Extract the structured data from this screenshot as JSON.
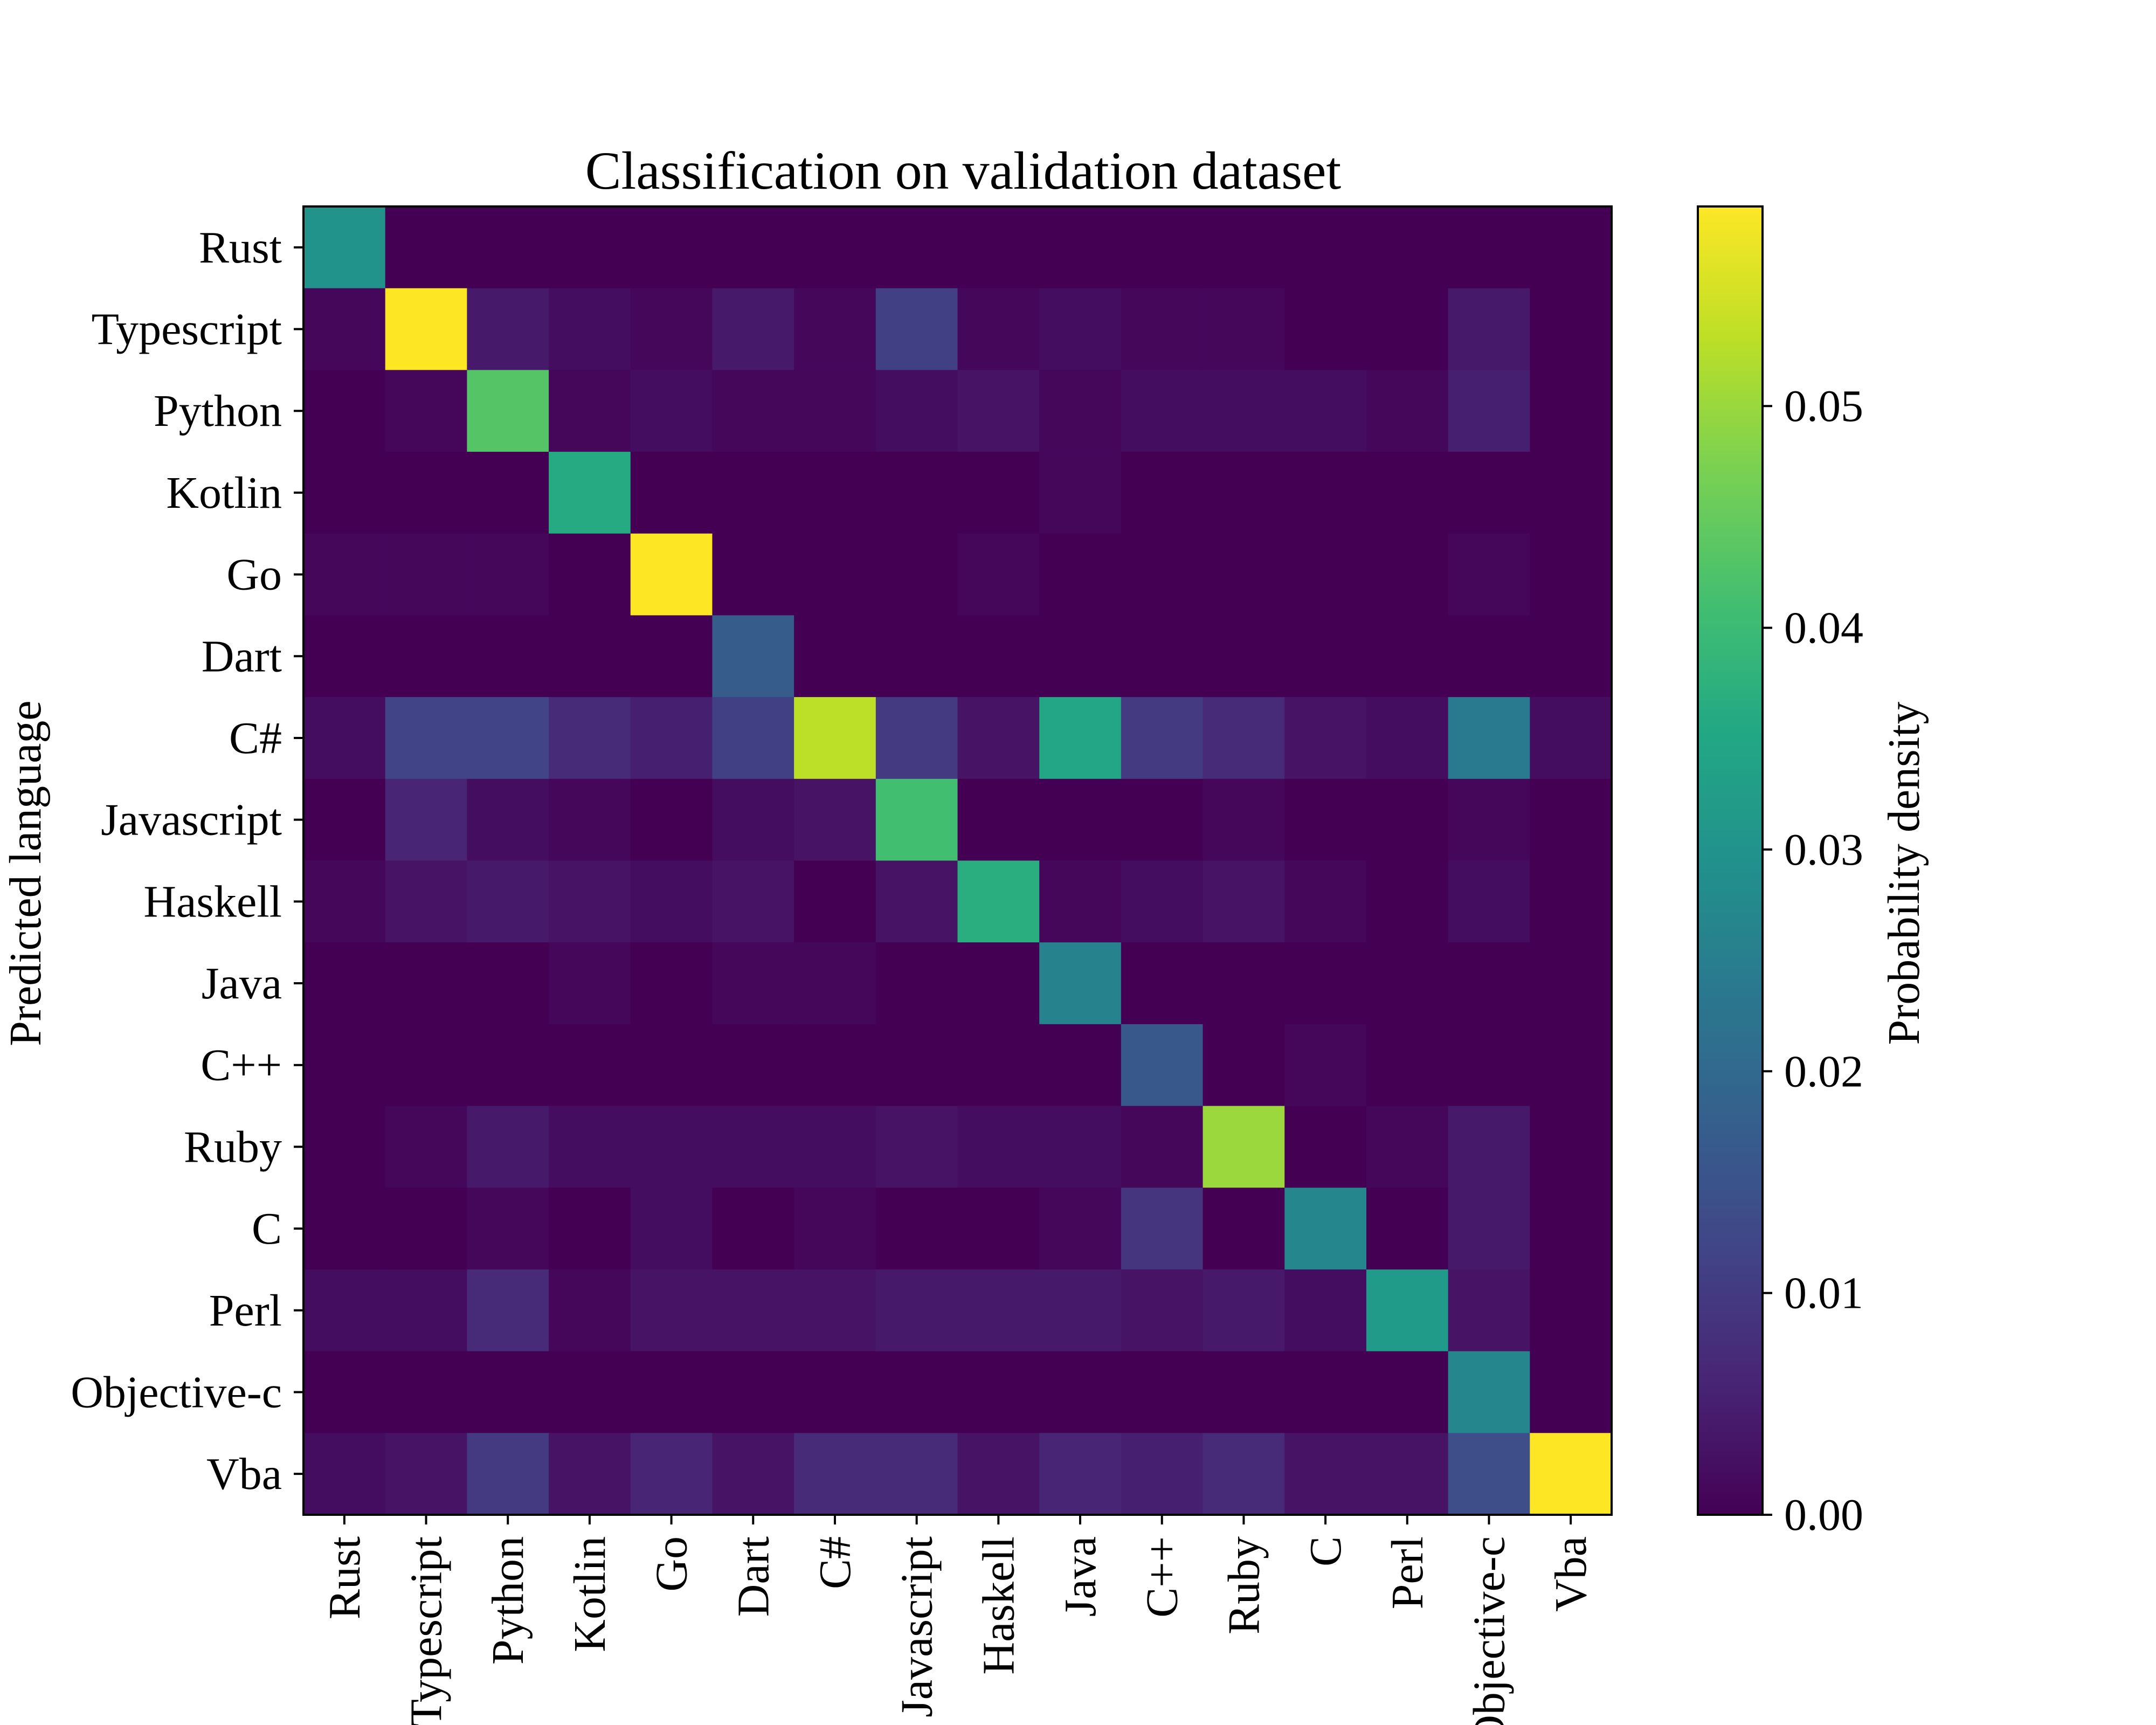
{
  "chart_data": {
    "type": "heatmap",
    "title": "Classification on validation dataset",
    "xlabel": "",
    "ylabel": "Predicted language",
    "colorbar_label": "Probability density",
    "colormap": "viridis",
    "color_range": [
      0.0,
      0.059
    ],
    "colorbar_ticks": [
      "0.00",
      "0.01",
      "0.02",
      "0.03",
      "0.04",
      "0.05"
    ],
    "colorbar_tick_values": [
      0.0,
      0.01,
      0.02,
      0.03,
      0.04,
      0.05
    ],
    "x_categories": [
      "Rust",
      "Typescript",
      "Python",
      "Kotlin",
      "Go",
      "Dart",
      "C#",
      "Javascript",
      "Haskell",
      "Java",
      "C++",
      "Ruby",
      "C",
      "Perl",
      "Objective-c",
      "Vba"
    ],
    "y_categories": [
      "Rust",
      "Typescript",
      "Python",
      "Kotlin",
      "Go",
      "Dart",
      "C#",
      "Javascript",
      "Haskell",
      "Java",
      "C++",
      "Ruby",
      "C",
      "Perl",
      "Objective-c",
      "Vba"
    ],
    "values": [
      [
        0.03,
        0.0,
        0.0,
        0.0,
        0.0,
        0.0,
        0.0,
        0.0,
        0.0,
        0.0,
        0.0,
        0.0,
        0.0,
        0.0,
        0.0,
        0.0
      ],
      [
        0.001,
        0.059,
        0.004,
        0.002,
        0.001,
        0.004,
        0.001,
        0.011,
        0.001,
        0.002,
        0.001,
        0.001,
        0.0,
        0.0,
        0.004,
        0.0
      ],
      [
        0.0,
        0.001,
        0.043,
        0.001,
        0.002,
        0.001,
        0.001,
        0.002,
        0.003,
        0.001,
        0.002,
        0.002,
        0.002,
        0.001,
        0.005,
        0.0
      ],
      [
        0.0,
        0.0,
        0.0,
        0.036,
        0.0,
        0.0,
        0.0,
        0.0,
        0.0,
        0.001,
        0.0,
        0.0,
        0.0,
        0.0,
        0.0,
        0.0
      ],
      [
        0.001,
        0.001,
        0.001,
        0.0,
        0.059,
        0.0,
        0.0,
        0.0,
        0.001,
        0.0,
        0.0,
        0.0,
        0.0,
        0.0,
        0.001,
        0.0
      ],
      [
        0.0,
        0.0,
        0.0,
        0.0,
        0.0,
        0.017,
        0.0,
        0.0,
        0.0,
        0.0,
        0.0,
        0.0,
        0.0,
        0.0,
        0.0,
        0.0
      ],
      [
        0.002,
        0.012,
        0.012,
        0.007,
        0.005,
        0.011,
        0.053,
        0.01,
        0.003,
        0.035,
        0.01,
        0.007,
        0.003,
        0.002,
        0.024,
        0.002
      ],
      [
        0.0,
        0.006,
        0.002,
        0.001,
        0.0,
        0.002,
        0.003,
        0.041,
        0.0,
        0.0,
        0.0,
        0.001,
        0.0,
        0.0,
        0.001,
        0.0
      ],
      [
        0.001,
        0.003,
        0.004,
        0.003,
        0.002,
        0.003,
        0.0,
        0.003,
        0.037,
        0.001,
        0.002,
        0.003,
        0.001,
        0.0,
        0.002,
        0.0
      ],
      [
        0.0,
        0.0,
        0.0,
        0.001,
        0.0,
        0.001,
        0.001,
        0.0,
        0.0,
        0.026,
        0.0,
        0.0,
        0.0,
        0.0,
        0.0,
        0.0
      ],
      [
        0.0,
        0.0,
        0.0,
        0.0,
        0.0,
        0.0,
        0.0,
        0.0,
        0.0,
        0.0,
        0.016,
        0.0,
        0.001,
        0.0,
        0.0,
        0.0
      ],
      [
        0.0,
        0.001,
        0.004,
        0.002,
        0.002,
        0.002,
        0.002,
        0.003,
        0.002,
        0.002,
        0.001,
        0.05,
        0.0,
        0.001,
        0.004,
        0.0
      ],
      [
        0.0,
        0.0,
        0.001,
        0.0,
        0.002,
        0.0,
        0.001,
        0.0,
        0.0,
        0.001,
        0.009,
        0.0,
        0.027,
        0.0,
        0.004,
        0.0
      ],
      [
        0.002,
        0.002,
        0.007,
        0.001,
        0.003,
        0.003,
        0.003,
        0.004,
        0.004,
        0.004,
        0.003,
        0.004,
        0.002,
        0.032,
        0.003,
        0.0
      ],
      [
        0.0,
        0.0,
        0.0,
        0.0,
        0.0,
        0.0,
        0.0,
        0.0,
        0.0,
        0.0,
        0.0,
        0.0,
        0.0,
        0.0,
        0.027,
        0.0
      ],
      [
        0.002,
        0.003,
        0.01,
        0.003,
        0.006,
        0.003,
        0.007,
        0.007,
        0.003,
        0.006,
        0.005,
        0.007,
        0.003,
        0.003,
        0.014,
        0.059
      ]
    ]
  }
}
